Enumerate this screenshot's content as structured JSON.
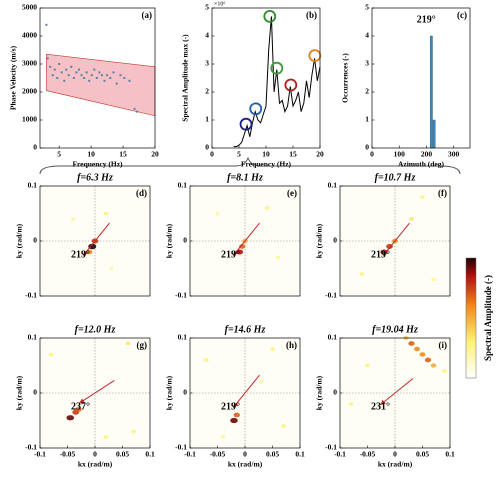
{
  "chart_data": [
    {
      "type": "scatter_band",
      "panel_label": "(a)",
      "xlabel": "Frequency (Hz)",
      "ylabel": "Phase Velocity (m/s)",
      "xlim": [
        2,
        20
      ],
      "xticks": [
        5,
        10,
        15,
        20
      ],
      "ylim": [
        0,
        5000
      ],
      "yticks": [
        0,
        1000,
        2000,
        3000,
        4000,
        5000
      ],
      "x": [
        3.0,
        3.2,
        3.6,
        4.0,
        4.3,
        4.7,
        5.0,
        5.4,
        5.8,
        6.1,
        6.5,
        6.9,
        7.3,
        7.7,
        8.1,
        8.5,
        8.9,
        9.3,
        9.7,
        10.1,
        10.5,
        10.9,
        11.3,
        11.7,
        12.1,
        12.5,
        13.0,
        13.5,
        14.0,
        14.6,
        15.2,
        16.0,
        16.8,
        17.2
      ],
      "values": [
        4400,
        3200,
        2900,
        2600,
        2800,
        2500,
        3000,
        2700,
        2400,
        2800,
        2600,
        2900,
        2500,
        2700,
        2800,
        2600,
        2500,
        2700,
        2400,
        2600,
        2800,
        2500,
        2700,
        2600,
        2400,
        2600,
        2500,
        2700,
        2300,
        2600,
        2500,
        2400,
        1400,
        1300
      ],
      "color": "#5b7fa6",
      "band": {
        "x": [
          3,
          20
        ],
        "upper": [
          3350,
          2900
        ],
        "lower": [
          2050,
          1150
        ],
        "color": "#f6c1c6",
        "edge": "#c0392b"
      }
    },
    {
      "type": "line_peaks",
      "panel_label": "(b)",
      "xlabel": "Frequency (Hz)",
      "ylabel": "Spectral Amplitude max (-)",
      "y_multiplier": "×10⁶",
      "xlim": [
        0,
        20
      ],
      "xticks": [
        0,
        5,
        10,
        15,
        20
      ],
      "ylim": [
        0,
        5
      ],
      "yticks": [
        0,
        1,
        2,
        3,
        4,
        5
      ],
      "color": "#000000",
      "x": [
        4,
        4.5,
        5,
        5.5,
        6,
        6.5,
        7,
        7.5,
        8,
        8.5,
        9,
        9.5,
        10,
        10.5,
        11,
        11.5,
        12,
        12.5,
        13,
        13.5,
        14,
        14.5,
        15,
        15.5,
        16,
        16.5,
        17,
        17.5,
        18,
        18.5,
        19,
        19.5,
        20
      ],
      "values": [
        0.05,
        0.05,
        0.1,
        0.2,
        0.5,
        0.8,
        0.4,
        0.9,
        1.3,
        1.0,
        0.9,
        1.2,
        1.5,
        3.5,
        4.7,
        2.0,
        2.8,
        1.6,
        1.7,
        1.3,
        1.5,
        2.2,
        1.5,
        1.7,
        2.0,
        1.3,
        1.6,
        2.4,
        1.8,
        2.6,
        3.2,
        2.4,
        2.9
      ],
      "peaks": {
        "x": [
          6.3,
          8.1,
          10.7,
          12.0,
          14.6,
          19.04
        ],
        "values": [
          0.85,
          1.4,
          4.7,
          2.85,
          2.25,
          3.3
        ],
        "colors": [
          "#1a237e",
          "#1f5fa8",
          "#2e8b2e",
          "#3c9a3c",
          "#b71c1c",
          "#e67e22"
        ]
      }
    },
    {
      "type": "histogram",
      "panel_label": "(c)",
      "xlabel": "Azimuth (deg)",
      "ylabel": "Occurrences (-)",
      "annotation": "219°",
      "xlim": [
        0,
        360
      ],
      "xticks": [
        0,
        100,
        200,
        300
      ],
      "ylim": [
        0,
        5
      ],
      "yticks": [
        0,
        1,
        2,
        3,
        4,
        5
      ],
      "bins": [
        214,
        224,
        234
      ],
      "values": [
        4,
        1
      ],
      "color": "#3b8bc2"
    },
    {
      "type": "wavenumber",
      "title": "f=6.3 Hz",
      "title_color": "#1a237e",
      "panel_label": "(d)",
      "ylabel": "ky (rad/m)",
      "xlim": [
        -0.1,
        0.1
      ],
      "ylim": [
        -0.1,
        0.1
      ],
      "yticks": [
        -0.1,
        0,
        0.1
      ],
      "values": [
        219
      ],
      "value_labels": [
        "219°"
      ],
      "spots": {
        "x": [
          -0.005,
          0.0,
          -0.01,
          0.02,
          -0.04,
          0.03
        ],
        "y": [
          -0.01,
          0.0,
          -0.02,
          0.05,
          0.04,
          -0.05
        ],
        "amplitude": [
          1,
          0.7,
          0.5,
          0.15,
          0.1,
          0.1
        ]
      }
    },
    {
      "type": "wavenumber",
      "title": "f=8.1 Hz",
      "title_color": "#1f5fa8",
      "panel_label": "(e)",
      "ylabel": "ky (rad/m)",
      "xlim": [
        -0.1,
        0.1
      ],
      "ylim": [
        -0.1,
        0.1
      ],
      "yticks": [
        -0.1,
        0,
        0.1
      ],
      "values": [
        219
      ],
      "value_labels": [
        "219°"
      ],
      "spots": {
        "x": [
          -0.01,
          -0.005,
          0.0,
          0.04,
          -0.05,
          0.06
        ],
        "y": [
          -0.02,
          -0.01,
          0.0,
          0.06,
          0.05,
          -0.03
        ],
        "amplitude": [
          0.8,
          0.6,
          0.4,
          0.15,
          0.1,
          0.12
        ]
      }
    },
    {
      "type": "wavenumber",
      "title": "f=10.7 Hz",
      "title_color": "#2e8b2e",
      "panel_label": "(f)",
      "ylabel": "ky (rad/m)",
      "xlim": [
        -0.1,
        0.1
      ],
      "ylim": [
        -0.1,
        0.1
      ],
      "yticks": [
        -0.1,
        0,
        0.1
      ],
      "values": [
        219
      ],
      "value_labels": [
        "219°"
      ],
      "spots": {
        "x": [
          -0.02,
          -0.01,
          0.0,
          0.05,
          -0.06,
          0.07,
          0.03
        ],
        "y": [
          -0.02,
          -0.01,
          0,
          0.08,
          -0.06,
          -0.07,
          0.04
        ],
        "amplitude": [
          0.8,
          0.7,
          0.5,
          0.15,
          0.15,
          0.12,
          0.2
        ]
      }
    },
    {
      "type": "wavenumber",
      "title": "f=12.0 Hz",
      "title_color": "#3c9a3c",
      "panel_label": "(g)",
      "ylabel": "ky (rad/m)",
      "xlabel": "kx (rad/m)",
      "xlim": [
        -0.1,
        0.1
      ],
      "xticks": [
        -0.1,
        -0.05,
        0,
        0.05,
        0.1
      ],
      "ylim": [
        -0.1,
        0.1
      ],
      "yticks": [
        -0.1,
        0,
        0.1
      ],
      "values": [
        237
      ],
      "value_labels": [
        "237°"
      ],
      "spots": {
        "x": [
          -0.045,
          -0.035,
          -0.03,
          0.06,
          -0.08,
          0.07,
          0.02
        ],
        "y": [
          -0.045,
          -0.035,
          -0.03,
          0.09,
          0.07,
          -0.07,
          -0.08
        ],
        "amplitude": [
          0.9,
          0.7,
          0.6,
          0.2,
          0.15,
          0.15,
          0.15
        ]
      }
    },
    {
      "type": "wavenumber",
      "title": "f=14.6 Hz",
      "title_color": "#b71c1c",
      "panel_label": "(h)",
      "ylabel": "ky (rad/m)",
      "xlabel": "kx (rad/m)",
      "xlim": [
        -0.1,
        0.1
      ],
      "xticks": [
        -0.1,
        -0.05,
        0,
        0.05,
        0.1
      ],
      "ylim": [
        -0.1,
        0.1
      ],
      "yticks": [
        -0.1,
        0,
        0.1
      ],
      "values": [
        219
      ],
      "value_labels": [
        "219°"
      ],
      "spots": {
        "x": [
          -0.02,
          -0.015,
          0.05,
          -0.07,
          0.07,
          -0.04,
          0.03
        ],
        "y": [
          -0.05,
          -0.04,
          0.08,
          0.06,
          -0.06,
          -0.08,
          0.02
        ],
        "amplitude": [
          0.9,
          0.6,
          0.15,
          0.15,
          0.15,
          0.12,
          0.1
        ]
      }
    },
    {
      "type": "wavenumber",
      "title": "f=19.04 Hz",
      "title_color": "#e67e22",
      "panel_label": "(i)",
      "ylabel": "ky (rad/m)",
      "xlabel": "kx (rad/m)",
      "xlim": [
        -0.1,
        0.1
      ],
      "xticks": [
        -0.1,
        -0.05,
        0,
        0.05,
        0.1
      ],
      "ylim": [
        -0.1,
        0.1
      ],
      "yticks": [
        -0.1,
        0,
        0.1
      ],
      "values": [
        231
      ],
      "value_labels": [
        "231°"
      ],
      "spots": {
        "x": [
          0.03,
          0.04,
          0.05,
          0.06,
          0.07,
          0.02,
          -0.08,
          0.09,
          -0.05
        ],
        "y": [
          0.09,
          0.08,
          0.07,
          0.06,
          0.05,
          0.1,
          -0.02,
          0.04,
          0.05
        ],
        "amplitude": [
          0.6,
          0.5,
          0.5,
          0.6,
          0.4,
          0.3,
          0.15,
          0.15,
          0.15
        ]
      }
    }
  ],
  "colorbar": {
    "label": "Spectral Amplitude (-)"
  }
}
